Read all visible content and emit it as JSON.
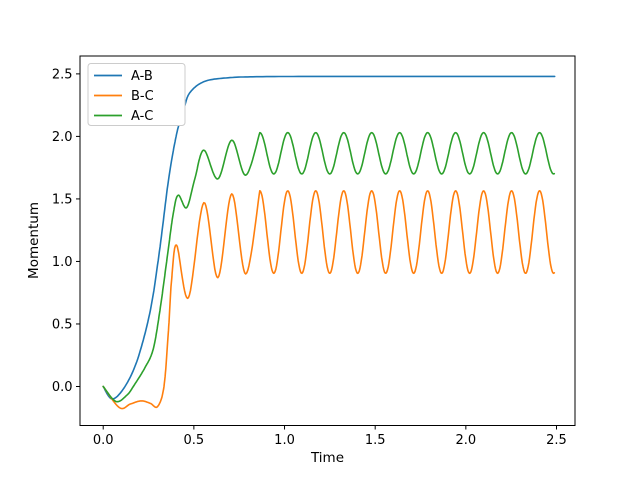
{
  "chart_data": {
    "type": "line",
    "title": "",
    "xlabel": "Time",
    "ylabel": "Momentum",
    "xlim": [
      -0.128,
      2.602
    ],
    "ylim": [
      -0.312,
      2.643
    ],
    "xticks": [
      0.0,
      0.5,
      1.0,
      1.5,
      2.0,
      2.5
    ],
    "xtick_labels": [
      "0.0",
      "0.5",
      "1.0",
      "1.5",
      "2.0",
      "2.5"
    ],
    "yticks": [
      0.0,
      0.5,
      1.0,
      1.5,
      2.0,
      2.5
    ],
    "ytick_labels": [
      "0.0",
      "0.5",
      "1.0",
      "1.5",
      "2.0",
      "2.5"
    ],
    "grid": false,
    "legend": {
      "position": "upper left",
      "border_color": "#cccccc",
      "background": "#ffffff"
    },
    "background_color": "#ffffff",
    "spine_color": "#000000",
    "series": [
      {
        "name": "A-B",
        "color": "#1f77b4",
        "description": "sigmoid rise from 0 (small initial dip to -0.10 at t=0.05) to a flat plateau of 2.48 reached near t=0.8",
        "keyframes": [
          [
            0,
            0
          ],
          [
            0.05,
            -0.1
          ],
          [
            0.12,
            0.0
          ],
          [
            0.19,
            0.22
          ],
          [
            0.26,
            0.61
          ],
          [
            0.31,
            1.08
          ],
          [
            0.36,
            1.65
          ],
          [
            0.405,
            2.02
          ],
          [
            0.445,
            2.22
          ],
          [
            0.478,
            2.35
          ],
          [
            0.56,
            2.44
          ],
          [
            0.7,
            2.47
          ],
          [
            0.9,
            2.478
          ],
          [
            1.3,
            2.48
          ],
          [
            1.9,
            2.48
          ],
          [
            2.49,
            2.48
          ]
        ],
        "steady_state": {
          "plateau": 2.48
        }
      },
      {
        "name": "B-C",
        "color": "#ff7f0e",
        "description": "dips to -0.17, small bump near t=0.21, steep rise after t=0.33, then sustained oscillation between about 0.91 and 1.57",
        "keyframes": [
          [
            0,
            0
          ],
          [
            0.09,
            -0.17
          ],
          [
            0.15,
            -0.14
          ],
          [
            0.21,
            -0.115
          ],
          [
            0.26,
            -0.135
          ],
          [
            0.3,
            -0.16
          ],
          [
            0.335,
            0.0
          ],
          [
            0.36,
            0.45
          ],
          [
            0.377,
            0.85
          ],
          [
            0.405,
            1.13
          ],
          [
            0.47,
            0.71
          ],
          [
            0.555,
            1.47
          ],
          [
            0.632,
            0.87
          ],
          [
            0.709,
            1.54
          ],
          [
            0.786,
            0.9
          ],
          [
            0.8636,
            1.565
          ]
        ],
        "oscillation": {
          "mean": 1.235,
          "amplitude": 0.33,
          "period": 0.1543,
          "peak_t": 0.8636,
          "end_t": 2.49,
          "min": 0.905,
          "max": 1.565
        }
      },
      {
        "name": "A-C",
        "color": "#2ca02c",
        "description": "dips to -0.12, rises with a shoulder at ~1.53 (t=0.41), then sustained oscillation between about 1.70 and 2.03",
        "keyframes": [
          [
            0,
            0
          ],
          [
            0.07,
            -0.12
          ],
          [
            0.13,
            -0.07
          ],
          [
            0.166,
            0.0
          ],
          [
            0.23,
            0.15
          ],
          [
            0.276,
            0.3
          ],
          [
            0.313,
            0.61
          ],
          [
            0.35,
            1.0
          ],
          [
            0.386,
            1.38
          ],
          [
            0.414,
            1.53
          ],
          [
            0.46,
            1.43
          ],
          [
            0.505,
            1.66
          ],
          [
            0.555,
            1.89
          ],
          [
            0.632,
            1.66
          ],
          [
            0.709,
            1.97
          ],
          [
            0.786,
            1.69
          ],
          [
            0.8636,
            2.03
          ]
        ],
        "oscillation": {
          "mean": 1.865,
          "amplitude": 0.165,
          "period": 0.1543,
          "peak_t": 0.8636,
          "end_t": 2.49,
          "min": 1.7,
          "max": 2.03
        }
      }
    ]
  }
}
